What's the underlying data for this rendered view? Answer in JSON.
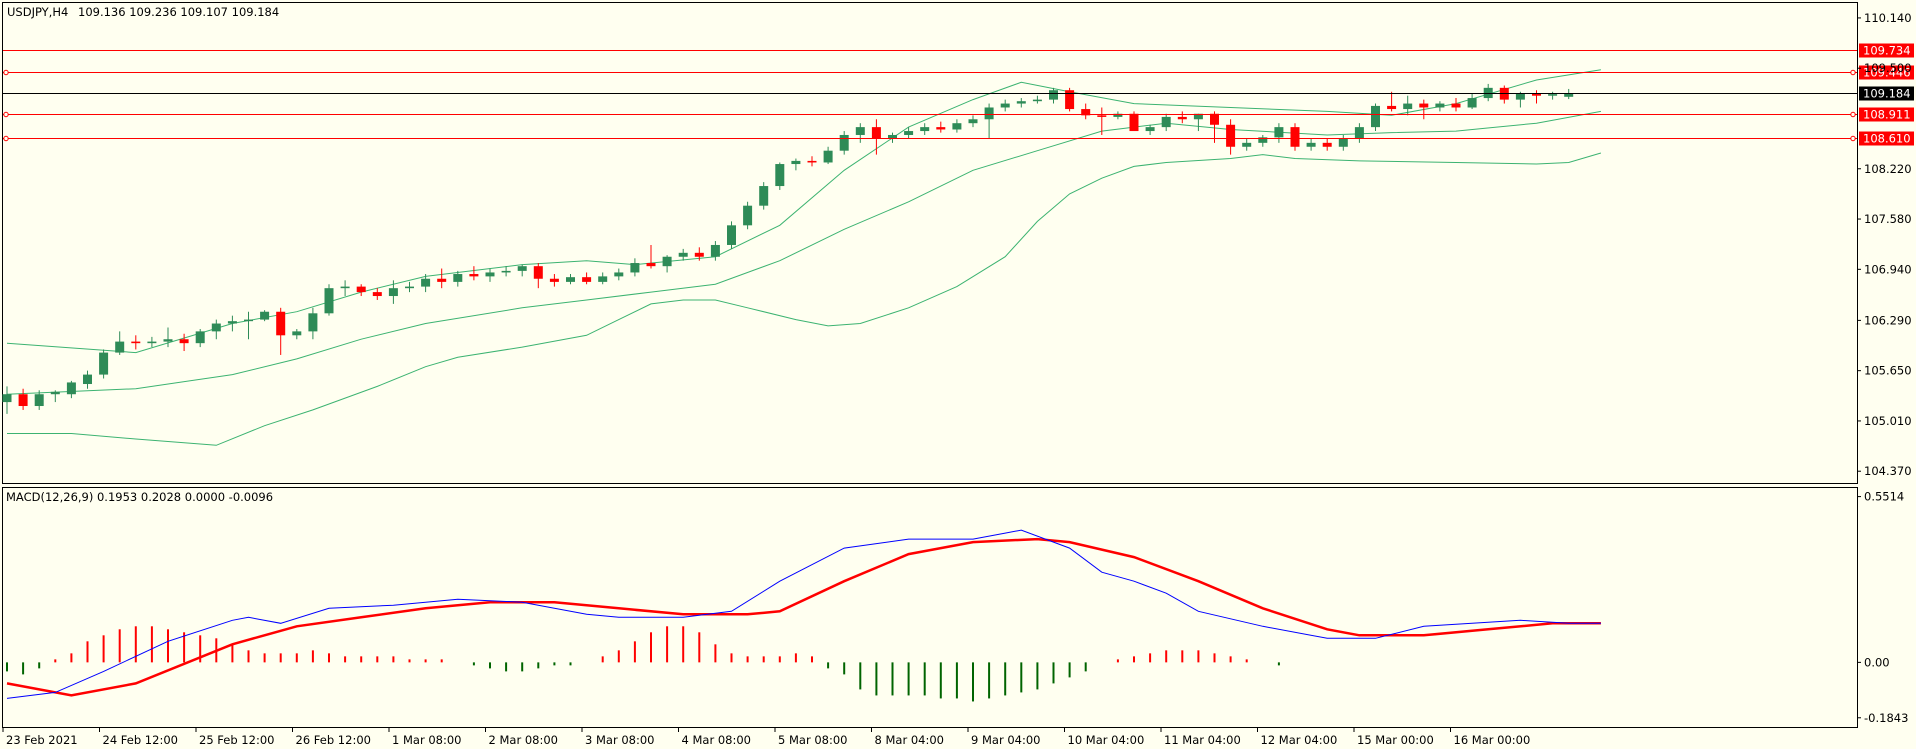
{
  "chart_data": [
    {
      "type": "candlestick",
      "title": "USDJPY,H4",
      "ohlc_header": "109.136 109.236 109.107 109.184",
      "x_tick_labels": [
        "23 Feb 2021",
        "24 Feb 12:00",
        "25 Feb 12:00",
        "26 Feb 12:00",
        "1 Mar 08:00",
        "2 Mar 08:00",
        "3 Mar 08:00",
        "4 Mar 08:00",
        "5 Mar 08:00",
        "8 Mar 04:00",
        "9 Mar 04:00",
        "10 Mar 04:00",
        "11 Mar 04:00",
        "12 Mar 04:00",
        "15 Mar 00:00",
        "16 Mar 00:00"
      ],
      "y_tick_labels": [
        "110.140",
        "109.500",
        "108.220",
        "107.580",
        "106.940",
        "106.290",
        "105.650",
        "105.010",
        "104.370"
      ],
      "ylim": [
        104.22,
        110.33
      ],
      "current_price": "109.184",
      "horizontal_lines": [
        {
          "label": "109.734",
          "value": 109.734
        },
        {
          "label": "109.446",
          "value": 109.446
        },
        {
          "label": "108.911",
          "value": 108.911
        },
        {
          "label": "108.610",
          "value": 108.61
        }
      ],
      "colors": {
        "bull": "#2e8b57",
        "bear": "#ff0000",
        "bands": "#3cb371",
        "hline": "#ff0000",
        "current": "#000000"
      },
      "candles": [
        [
          105.25,
          105.45,
          105.1,
          105.35
        ],
        [
          105.35,
          105.42,
          105.15,
          105.2
        ],
        [
          105.2,
          105.4,
          105.15,
          105.35
        ],
        [
          105.35,
          105.4,
          105.25,
          105.38
        ],
        [
          105.35,
          105.52,
          105.3,
          105.5
        ],
        [
          105.48,
          105.65,
          105.42,
          105.6
        ],
        [
          105.6,
          105.92,
          105.55,
          105.88
        ],
        [
          105.88,
          106.15,
          105.85,
          106.02
        ],
        [
          106.02,
          106.1,
          105.92,
          106.0
        ],
        [
          106.0,
          106.08,
          105.95,
          106.02
        ],
        [
          106.02,
          106.2,
          105.95,
          106.05
        ],
        [
          106.05,
          106.12,
          105.9,
          106.0
        ],
        [
          106.0,
          106.18,
          105.95,
          106.15
        ],
        [
          106.15,
          106.3,
          106.05,
          106.25
        ],
        [
          106.25,
          106.35,
          106.15,
          106.28
        ],
        [
          106.28,
          106.4,
          106.05,
          106.3
        ],
        [
          106.3,
          106.42,
          106.28,
          106.4
        ],
        [
          106.4,
          106.45,
          105.85,
          106.1
        ],
        [
          106.1,
          106.18,
          106.05,
          106.15
        ],
        [
          106.15,
          106.45,
          106.05,
          106.38
        ],
        [
          106.38,
          106.75,
          106.35,
          106.7
        ],
        [
          106.7,
          106.8,
          106.6,
          106.72
        ],
        [
          106.72,
          106.75,
          106.6,
          106.65
        ],
        [
          106.65,
          106.7,
          106.55,
          106.6
        ],
        [
          106.6,
          106.8,
          106.5,
          106.7
        ],
        [
          106.7,
          106.78,
          106.65,
          106.72
        ],
        [
          106.72,
          106.88,
          106.65,
          106.82
        ],
        [
          106.82,
          106.95,
          106.7,
          106.78
        ],
        [
          106.78,
          106.92,
          106.72,
          106.88
        ],
        [
          106.88,
          106.98,
          106.8,
          106.85
        ],
        [
          106.85,
          106.95,
          106.78,
          106.9
        ],
        [
          106.9,
          106.98,
          106.85,
          106.92
        ],
        [
          106.92,
          107.0,
          106.85,
          106.98
        ],
        [
          106.98,
          107.02,
          106.7,
          106.82
        ],
        [
          106.82,
          106.88,
          106.72,
          106.78
        ],
        [
          106.78,
          106.88,
          106.75,
          106.84
        ],
        [
          106.84,
          106.9,
          106.75,
          106.78
        ],
        [
          106.78,
          106.9,
          106.75,
          106.85
        ],
        [
          106.85,
          106.95,
          106.8,
          106.9
        ],
        [
          106.9,
          107.08,
          106.85,
          107.02
        ],
        [
          107.02,
          107.25,
          106.95,
          106.98
        ],
        [
          106.98,
          107.12,
          106.9,
          107.1
        ],
        [
          107.1,
          107.2,
          107.05,
          107.15
        ],
        [
          107.15,
          107.22,
          107.05,
          107.1
        ],
        [
          107.1,
          107.3,
          107.05,
          107.25
        ],
        [
          107.25,
          107.55,
          107.2,
          107.5
        ],
        [
          107.5,
          107.8,
          107.45,
          107.75
        ],
        [
          107.75,
          108.05,
          107.7,
          108.0
        ],
        [
          108.0,
          108.3,
          107.95,
          108.28
        ],
        [
          108.28,
          108.35,
          108.2,
          108.32
        ],
        [
          108.32,
          108.38,
          108.25,
          108.3
        ],
        [
          108.3,
          108.5,
          108.28,
          108.45
        ],
        [
          108.45,
          108.7,
          108.4,
          108.65
        ],
        [
          108.65,
          108.8,
          108.55,
          108.75
        ],
        [
          108.75,
          108.85,
          108.4,
          108.6
        ],
        [
          108.6,
          108.68,
          108.55,
          108.65
        ],
        [
          108.65,
          108.75,
          108.6,
          108.7
        ],
        [
          108.7,
          108.8,
          108.65,
          108.75
        ],
        [
          108.75,
          108.82,
          108.68,
          108.72
        ],
        [
          108.72,
          108.85,
          108.68,
          108.8
        ],
        [
          108.8,
          108.9,
          108.75,
          108.85
        ],
        [
          108.85,
          109.05,
          108.6,
          109.0
        ],
        [
          109.0,
          109.1,
          108.95,
          109.05
        ],
        [
          109.05,
          109.12,
          109.0,
          109.08
        ],
        [
          109.08,
          109.15,
          109.05,
          109.1
        ],
        [
          109.1,
          109.25,
          109.05,
          109.22
        ],
        [
          109.22,
          109.25,
          108.95,
          108.98
        ],
        [
          108.98,
          109.05,
          108.85,
          108.9
        ],
        [
          108.9,
          109.0,
          108.65,
          108.88
        ],
        [
          108.88,
          108.95,
          108.85,
          108.92
        ],
        [
          108.92,
          108.95,
          108.7,
          108.7
        ],
        [
          108.7,
          108.78,
          108.65,
          108.75
        ],
        [
          108.75,
          108.92,
          108.7,
          108.88
        ],
        [
          108.88,
          108.95,
          108.8,
          108.85
        ],
        [
          108.85,
          108.92,
          108.7,
          108.92
        ],
        [
          108.92,
          108.95,
          108.55,
          108.78
        ],
        [
          108.78,
          108.85,
          108.4,
          108.5
        ],
        [
          108.5,
          108.6,
          108.45,
          108.55
        ],
        [
          108.55,
          108.65,
          108.5,
          108.62
        ],
        [
          108.62,
          108.8,
          108.55,
          108.75
        ],
        [
          108.75,
          108.8,
          108.45,
          108.5
        ],
        [
          108.5,
          108.6,
          108.45,
          108.55
        ],
        [
          108.55,
          108.6,
          108.45,
          108.5
        ],
        [
          108.5,
          108.65,
          108.45,
          108.6
        ],
        [
          108.6,
          108.8,
          108.55,
          108.75
        ],
        [
          108.75,
          109.05,
          108.7,
          109.02
        ],
        [
          109.02,
          109.2,
          108.95,
          108.98
        ],
        [
          108.98,
          109.15,
          108.9,
          109.05
        ],
        [
          109.05,
          109.1,
          108.85,
          109.0
        ],
        [
          109.0,
          109.08,
          108.95,
          109.05
        ],
        [
          109.05,
          109.12,
          108.95,
          109.0
        ],
        [
          109.0,
          109.18,
          108.98,
          109.12
        ],
        [
          109.12,
          109.3,
          109.08,
          109.25
        ],
        [
          109.25,
          109.28,
          109.05,
          109.1
        ],
        [
          109.1,
          109.2,
          109.0,
          109.18
        ],
        [
          109.18,
          109.22,
          109.05,
          109.15
        ],
        [
          109.15,
          109.2,
          109.1,
          109.17
        ],
        [
          109.136,
          109.236,
          109.107,
          109.184
        ]
      ],
      "bands": {
        "upper": [
          [
            0,
            106.0
          ],
          [
            8,
            105.88
          ],
          [
            14,
            106.25
          ],
          [
            18,
            106.4
          ],
          [
            22,
            106.65
          ],
          [
            26,
            106.85
          ],
          [
            32,
            107.0
          ],
          [
            36,
            107.05
          ],
          [
            39,
            107.0
          ],
          [
            44,
            107.1
          ],
          [
            48,
            107.5
          ],
          [
            52,
            108.2
          ],
          [
            56,
            108.75
          ],
          [
            60,
            109.1
          ],
          [
            63,
            109.32
          ],
          [
            66,
            109.2
          ],
          [
            70,
            109.05
          ],
          [
            76,
            109.0
          ],
          [
            82,
            108.95
          ],
          [
            86,
            108.9
          ],
          [
            90,
            109.05
          ],
          [
            95,
            109.35
          ],
          [
            99,
            109.48
          ]
        ],
        "middle": [
          [
            0,
            105.35
          ],
          [
            8,
            105.42
          ],
          [
            14,
            105.6
          ],
          [
            18,
            105.8
          ],
          [
            22,
            106.05
          ],
          [
            26,
            106.25
          ],
          [
            32,
            106.45
          ],
          [
            36,
            106.55
          ],
          [
            40,
            106.65
          ],
          [
            44,
            106.75
          ],
          [
            48,
            107.05
          ],
          [
            52,
            107.45
          ],
          [
            56,
            107.8
          ],
          [
            60,
            108.2
          ],
          [
            64,
            108.45
          ],
          [
            68,
            108.7
          ],
          [
            72,
            108.8
          ],
          [
            76,
            108.72
          ],
          [
            82,
            108.65
          ],
          [
            86,
            108.68
          ],
          [
            90,
            108.7
          ],
          [
            95,
            108.8
          ],
          [
            99,
            108.95
          ]
        ],
        "lower": [
          [
            0,
            104.85
          ],
          [
            4,
            104.85
          ],
          [
            8,
            104.78
          ],
          [
            13,
            104.7
          ],
          [
            16,
            104.95
          ],
          [
            19,
            105.15
          ],
          [
            23,
            105.45
          ],
          [
            26,
            105.7
          ],
          [
            28,
            105.82
          ],
          [
            32,
            105.95
          ],
          [
            36,
            106.1
          ],
          [
            38,
            106.3
          ],
          [
            40,
            106.5
          ],
          [
            42,
            106.55
          ],
          [
            44,
            106.55
          ],
          [
            46,
            106.45
          ],
          [
            49,
            106.3
          ],
          [
            51,
            106.22
          ],
          [
            53,
            106.25
          ],
          [
            56,
            106.45
          ],
          [
            59,
            106.72
          ],
          [
            62,
            107.1
          ],
          [
            64,
            107.55
          ],
          [
            66,
            107.9
          ],
          [
            68,
            108.1
          ],
          [
            70,
            108.25
          ],
          [
            72,
            108.3
          ],
          [
            76,
            108.35
          ],
          [
            78,
            108.4
          ],
          [
            80,
            108.35
          ],
          [
            84,
            108.32
          ],
          [
            90,
            108.3
          ],
          [
            95,
            108.28
          ],
          [
            97,
            108.3
          ],
          [
            99,
            108.42
          ]
        ]
      }
    },
    {
      "type": "macd",
      "title": "MACD(12,26,9) 0.1953 0.2028 0.0000 -0.0096",
      "y_tick_labels": [
        "0.5514",
        "0.00",
        "-0.1843"
      ],
      "ylim": [
        -0.215,
        0.58
      ],
      "colors": {
        "macd_line": "#0000ff",
        "signal_line": "#ff0000",
        "hist_pos": "#ff0000",
        "hist_neg": "#006400"
      },
      "macd": [
        [
          0,
          -0.12
        ],
        [
          3,
          -0.1
        ],
        [
          6,
          -0.03
        ],
        [
          10,
          0.07
        ],
        [
          14,
          0.14
        ],
        [
          15,
          0.15
        ],
        [
          17,
          0.13
        ],
        [
          20,
          0.18
        ],
        [
          24,
          0.19
        ],
        [
          28,
          0.21
        ],
        [
          32,
          0.2
        ],
        [
          36,
          0.16
        ],
        [
          38,
          0.15
        ],
        [
          42,
          0.15
        ],
        [
          45,
          0.17
        ],
        [
          48,
          0.27
        ],
        [
          52,
          0.38
        ],
        [
          56,
          0.41
        ],
        [
          60,
          0.41
        ],
        [
          62,
          0.43
        ],
        [
          63,
          0.44
        ],
        [
          66,
          0.38
        ],
        [
          68,
          0.3
        ],
        [
          70,
          0.27
        ],
        [
          72,
          0.23
        ],
        [
          74,
          0.17
        ],
        [
          78,
          0.12
        ],
        [
          82,
          0.08
        ],
        [
          85,
          0.08
        ],
        [
          88,
          0.12
        ],
        [
          91,
          0.13
        ],
        [
          94,
          0.14
        ],
        [
          97,
          0.13
        ],
        [
          99,
          0.13
        ]
      ],
      "signal": [
        [
          0,
          -0.07
        ],
        [
          4,
          -0.11
        ],
        [
          8,
          -0.07
        ],
        [
          14,
          0.06
        ],
        [
          18,
          0.12
        ],
        [
          22,
          0.15
        ],
        [
          26,
          0.18
        ],
        [
          30,
          0.2
        ],
        [
          34,
          0.2
        ],
        [
          38,
          0.18
        ],
        [
          42,
          0.16
        ],
        [
          46,
          0.16
        ],
        [
          48,
          0.17
        ],
        [
          52,
          0.27
        ],
        [
          56,
          0.36
        ],
        [
          60,
          0.4
        ],
        [
          64,
          0.41
        ],
        [
          66,
          0.4
        ],
        [
          70,
          0.35
        ],
        [
          74,
          0.27
        ],
        [
          78,
          0.18
        ],
        [
          82,
          0.11
        ],
        [
          84,
          0.09
        ],
        [
          88,
          0.09
        ],
        [
          92,
          0.11
        ],
        [
          96,
          0.13
        ],
        [
          99,
          0.13
        ]
      ],
      "histogram": [
        -0.03,
        -0.04,
        -0.02,
        0.01,
        0.03,
        0.07,
        0.09,
        0.11,
        0.12,
        0.12,
        0.11,
        0.1,
        0.09,
        0.08,
        0.06,
        0.04,
        0.03,
        0.03,
        0.03,
        0.04,
        0.03,
        0.02,
        0.02,
        0.02,
        0.02,
        0.01,
        0.01,
        0.01,
        0.0,
        -0.01,
        -0.02,
        -0.03,
        -0.03,
        -0.02,
        -0.01,
        -0.01,
        0.0,
        0.02,
        0.04,
        0.07,
        0.1,
        0.12,
        0.12,
        0.1,
        0.06,
        0.03,
        0.02,
        0.02,
        0.02,
        0.03,
        0.02,
        -0.02,
        -0.04,
        -0.09,
        -0.11,
        -0.11,
        -0.11,
        -0.11,
        -0.12,
        -0.12,
        -0.13,
        -0.12,
        -0.11,
        -0.1,
        -0.09,
        -0.07,
        -0.05,
        -0.03,
        0.0,
        0.01,
        0.02,
        0.03,
        0.04,
        0.04,
        0.04,
        0.03,
        0.02,
        0.01,
        0.0,
        -0.01
      ]
    }
  ]
}
